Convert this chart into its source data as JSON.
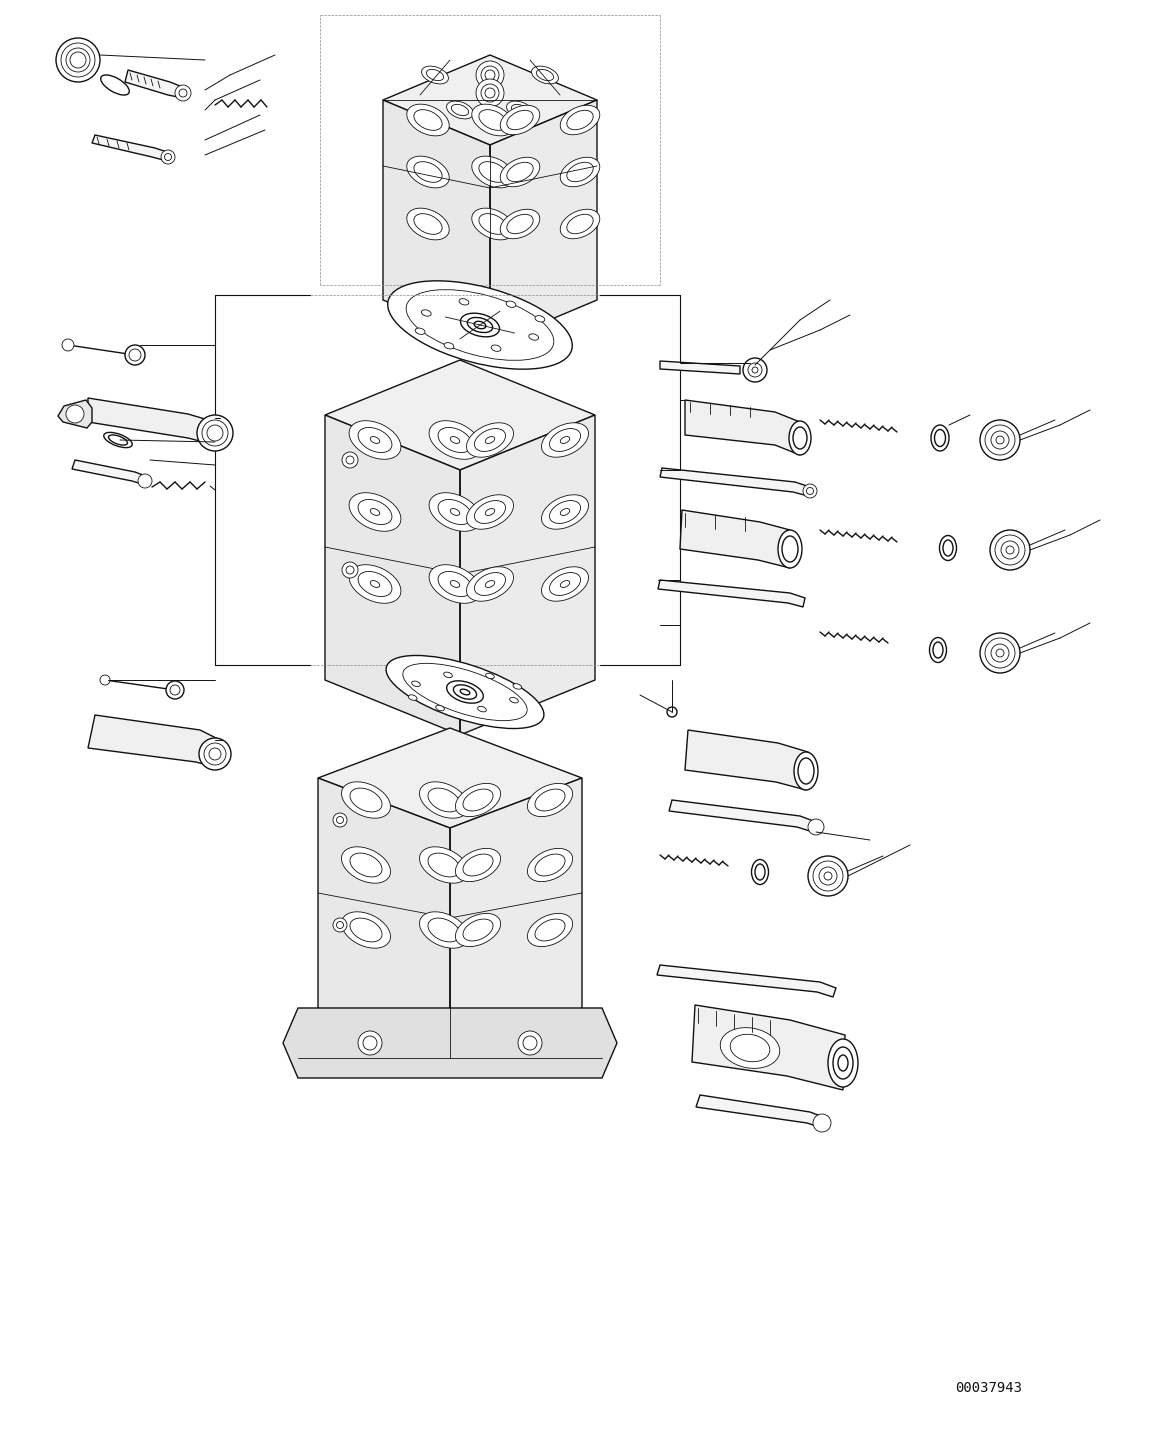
{
  "background_color": "#ffffff",
  "line_color": "#111111",
  "figure_width": 11.63,
  "figure_height": 14.31,
  "dpi": 100,
  "part_number": "00037943",
  "lw": 1.0,
  "tlw": 0.6
}
